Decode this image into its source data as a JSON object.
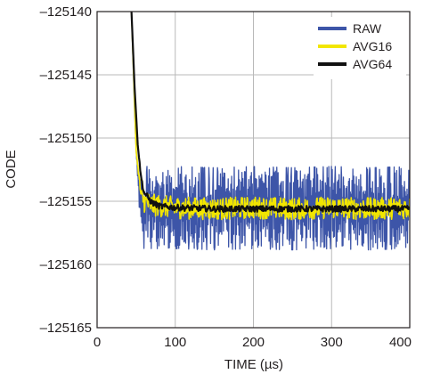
{
  "chart_data": {
    "type": "line",
    "xlabel": "TIME (µs)",
    "ylabel": "CODE",
    "xlim": [
      0,
      400
    ],
    "ylim": [
      -125165,
      -125140
    ],
    "xticks": [
      0,
      100,
      200,
      300,
      400
    ],
    "xtick_labels": [
      "0",
      "100",
      "200",
      "300",
      "400"
    ],
    "yticks": [
      -125140,
      -125145,
      -125150,
      -125155,
      -125160,
      -125165
    ],
    "ytick_labels": [
      "–125140",
      "–125145",
      "–125150",
      "–125155",
      "–125160",
      "–125165"
    ],
    "grid": true,
    "legend_position": "top-right",
    "series": [
      {
        "name": "RAW",
        "color": "#3d55a8",
        "summary": "step response from -125140 at ~45 µs settling to ~-125155.5 by ~60 µs; noise band about -125159 to -125152.5",
        "x": [
          44,
          46,
          48,
          50,
          52,
          54,
          56,
          58,
          60,
          70,
          100,
          150,
          200,
          250,
          300,
          350,
          400
        ],
        "y": [
          -125140,
          -125144,
          -125148,
          -125151,
          -125153,
          -125154.3,
          -125155,
          -125155.3,
          -125155.5,
          -125155.5,
          -125155.5,
          -125155.6,
          -125155.5,
          -125155.6,
          -125155.5,
          -125155.6,
          -125155.5
        ],
        "noise_band": [
          -125159,
          -125152.5
        ]
      },
      {
        "name": "AVG16",
        "color": "#f2e600",
        "summary": "follows the step, then settles near -125155.5 with band about -125156.6 to -125154.4",
        "x": [
          44,
          50,
          56,
          60,
          70,
          100,
          150,
          200,
          250,
          300,
          350,
          400
        ],
        "y": [
          -125140,
          -125151,
          -125154.5,
          -125155,
          -125155.3,
          -125155.5,
          -125155.6,
          -125155.5,
          -125155.6,
          -125155.5,
          -125155.6,
          -125155.5
        ],
        "noise_band": [
          -125156.6,
          -125154.4
        ]
      },
      {
        "name": "AVG64",
        "color": "#111111",
        "summary": "settles smoothly to about -125155.6",
        "x": [
          44,
          48,
          52,
          56,
          60,
          70,
          80,
          100,
          150,
          200,
          250,
          300,
          350,
          400
        ],
        "y": [
          -125140,
          -125146,
          -125150.5,
          -125153,
          -125154.3,
          -125155.1,
          -125155.4,
          -125155.5,
          -125155.6,
          -125155.6,
          -125155.6,
          -125155.6,
          -125155.6,
          -125155.6
        ],
        "noise_band": [
          -125156.0,
          -125155.2
        ]
      }
    ]
  }
}
